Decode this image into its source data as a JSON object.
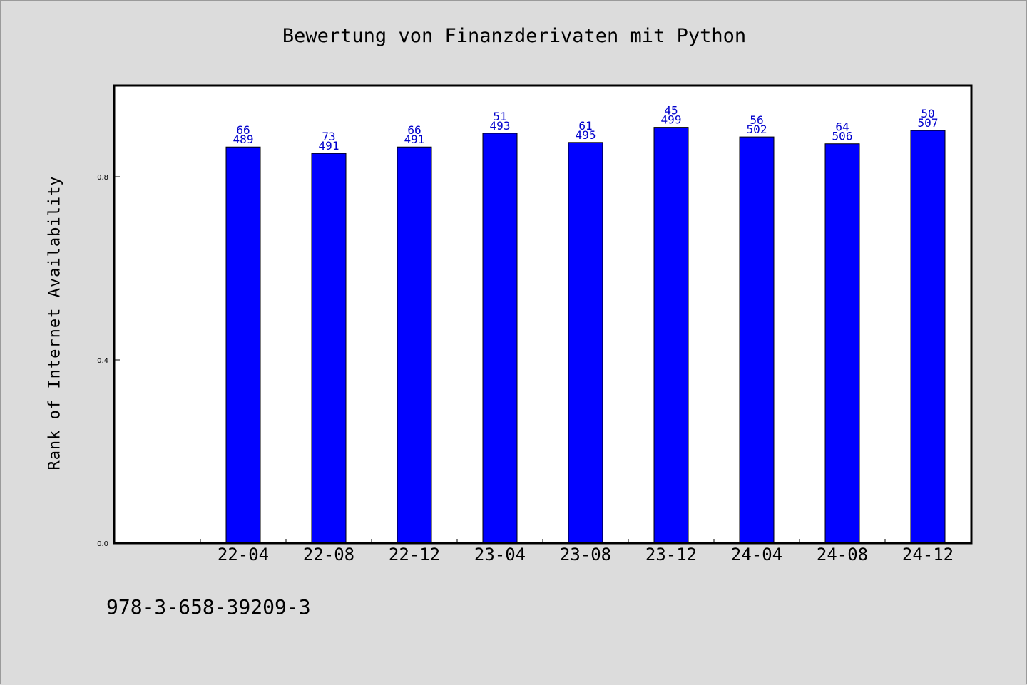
{
  "chart_data": {
    "type": "bar",
    "title": "Bewertung von Finanzderivaten mit Python",
    "xlabel": "",
    "ylabel": "Rank of Internet Availability",
    "categories": [
      "22-04",
      "22-08",
      "22-12",
      "23-04",
      "23-08",
      "23-12",
      "24-04",
      "24-08",
      "24-12"
    ],
    "values": [
      0.865,
      0.851,
      0.865,
      0.895,
      0.875,
      0.908,
      0.887,
      0.872,
      0.901
    ],
    "labels_top": [
      "66",
      "73",
      "66",
      "51",
      "61",
      "45",
      "56",
      "64",
      "50"
    ],
    "labels_bottom": [
      "489",
      "491",
      "491",
      "493",
      "495",
      "499",
      "502",
      "506",
      "507"
    ],
    "yticks": [
      0.0,
      0.4,
      0.8
    ],
    "ytick_labels": [
      "0.0",
      "0.4",
      "0.8"
    ],
    "ylim": [
      0,
      1.0
    ],
    "grid": false,
    "bar_color": "#0000ff",
    "label_color": "#0000cc"
  },
  "footnote": "978-3-658-39209-3"
}
